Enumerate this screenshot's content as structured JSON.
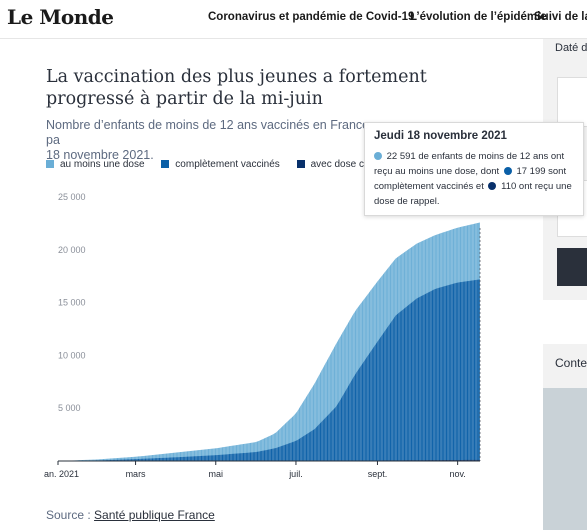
{
  "header": {
    "logo": "Le Monde",
    "nav": [
      "Coronavirus et pandémie de Covid-19",
      "L’évolution de l’épidémie",
      "Suivi de la v"
    ]
  },
  "sidebar": {
    "label": "Daté d",
    "label2": "Conte"
  },
  "article": {
    "title": "La vaccination des plus jeunes a fortement progressé à partir de la mi-juin",
    "subtitle": "Nombre d’enfants de moins de 12 ans vaccinés en France pa 18 novembre 2021.",
    "subtitle_line1": "Nombre d’enfants de moins de 12 ans vaccinés en France pa",
    "subtitle_line2": "18 novembre 2021.",
    "source_label": "Source :",
    "source_link": "Santé publique France"
  },
  "tooltip": {
    "title": "Jeudi 18 novembre 2021",
    "part1": "22 591 de enfants de moins de 12 ans ont reçu au moins une dose, dont",
    "part2": "17 199 sont complètement vaccinés et",
    "part3": "110 ont reçu une dose de rappel."
  },
  "colors": {
    "at_least_one": "#6aaed6",
    "fully": "#0a5fa7",
    "booster": "#08306b"
  },
  "chart_data": {
    "type": "area",
    "title": "La vaccination des plus jeunes a fortement progressé à partir de la mi-juin",
    "legend": [
      "au moins une dose",
      "complètement vaccinés",
      "avec dose c"
    ],
    "x_tick_labels": [
      "an. 2021",
      "mars",
      "mai",
      "juil.",
      "sept.",
      "nov."
    ],
    "y_tick_labels": [
      "5 000",
      "10 000",
      "15 000",
      "20 000",
      "25 000"
    ],
    "ylim": [
      0,
      25000
    ],
    "xlim": [
      "2021-01-01",
      "2021-11-18"
    ],
    "grid": false,
    "series": [
      {
        "name": "au moins une dose",
        "x": [
          "2021-01-01",
          "2021-02-01",
          "2021-03-01",
          "2021-04-01",
          "2021-05-01",
          "2021-06-01",
          "2021-06-15",
          "2021-07-01",
          "2021-07-15",
          "2021-08-01",
          "2021-08-15",
          "2021-09-01",
          "2021-09-15",
          "2021-10-01",
          "2021-10-15",
          "2021-11-01",
          "2021-11-18"
        ],
        "values": [
          0,
          150,
          400,
          800,
          1200,
          1800,
          2600,
          4500,
          7300,
          11200,
          14200,
          17000,
          19200,
          20600,
          21400,
          22100,
          22591
        ]
      },
      {
        "name": "complètement vaccinés",
        "x": [
          "2021-01-01",
          "2021-02-01",
          "2021-03-01",
          "2021-04-01",
          "2021-05-01",
          "2021-06-01",
          "2021-06-15",
          "2021-07-01",
          "2021-07-15",
          "2021-08-01",
          "2021-08-15",
          "2021-09-01",
          "2021-09-15",
          "2021-10-01",
          "2021-10-15",
          "2021-11-01",
          "2021-11-18"
        ],
        "values": [
          0,
          60,
          180,
          350,
          550,
          850,
          1200,
          1900,
          3000,
          5200,
          8200,
          11300,
          13800,
          15400,
          16300,
          16900,
          17199
        ]
      },
      {
        "name": "avec dose c",
        "x": [
          "2021-01-01",
          "2021-06-01",
          "2021-09-01",
          "2021-11-18"
        ],
        "values": [
          0,
          10,
          50,
          110
        ]
      }
    ]
  }
}
